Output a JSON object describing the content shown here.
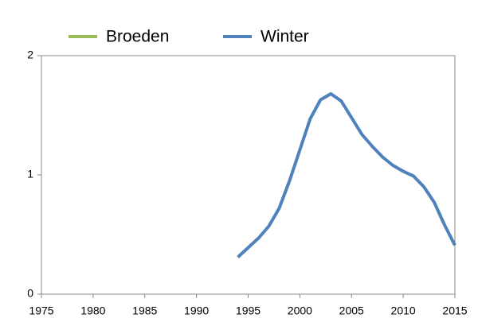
{
  "chart_data": {
    "type": "line",
    "x": [
      1994,
      1995,
      1996,
      1997,
      1998,
      1999,
      2000,
      2001,
      2002,
      2003,
      2004,
      2005,
      2006,
      2007,
      2008,
      2009,
      2010,
      2011,
      2012,
      2013,
      2014,
      2015
    ],
    "series": [
      {
        "name": "Broeden",
        "color": "#9bbb59",
        "values": [
          null,
          null,
          null,
          null,
          null,
          null,
          null,
          null,
          null,
          null,
          null,
          null,
          null,
          null,
          null,
          null,
          null,
          null,
          null,
          null,
          null,
          null
        ]
      },
      {
        "name": "Winter",
        "color": "#4f81bd",
        "values": [
          0.31,
          0.39,
          0.47,
          0.57,
          0.72,
          0.95,
          1.21,
          1.47,
          1.63,
          1.68,
          1.62,
          1.48,
          1.34,
          1.24,
          1.15,
          1.08,
          1.03,
          0.99,
          0.9,
          0.77,
          0.58,
          0.41
        ]
      }
    ],
    "xlim": [
      1975,
      2015
    ],
    "xticks": [
      1975,
      1980,
      1985,
      1990,
      1995,
      2000,
      2005,
      2010,
      2015
    ],
    "ylim": [
      0,
      2
    ],
    "yticks": [
      0,
      1,
      2
    ],
    "grid": false,
    "legend": "top"
  }
}
